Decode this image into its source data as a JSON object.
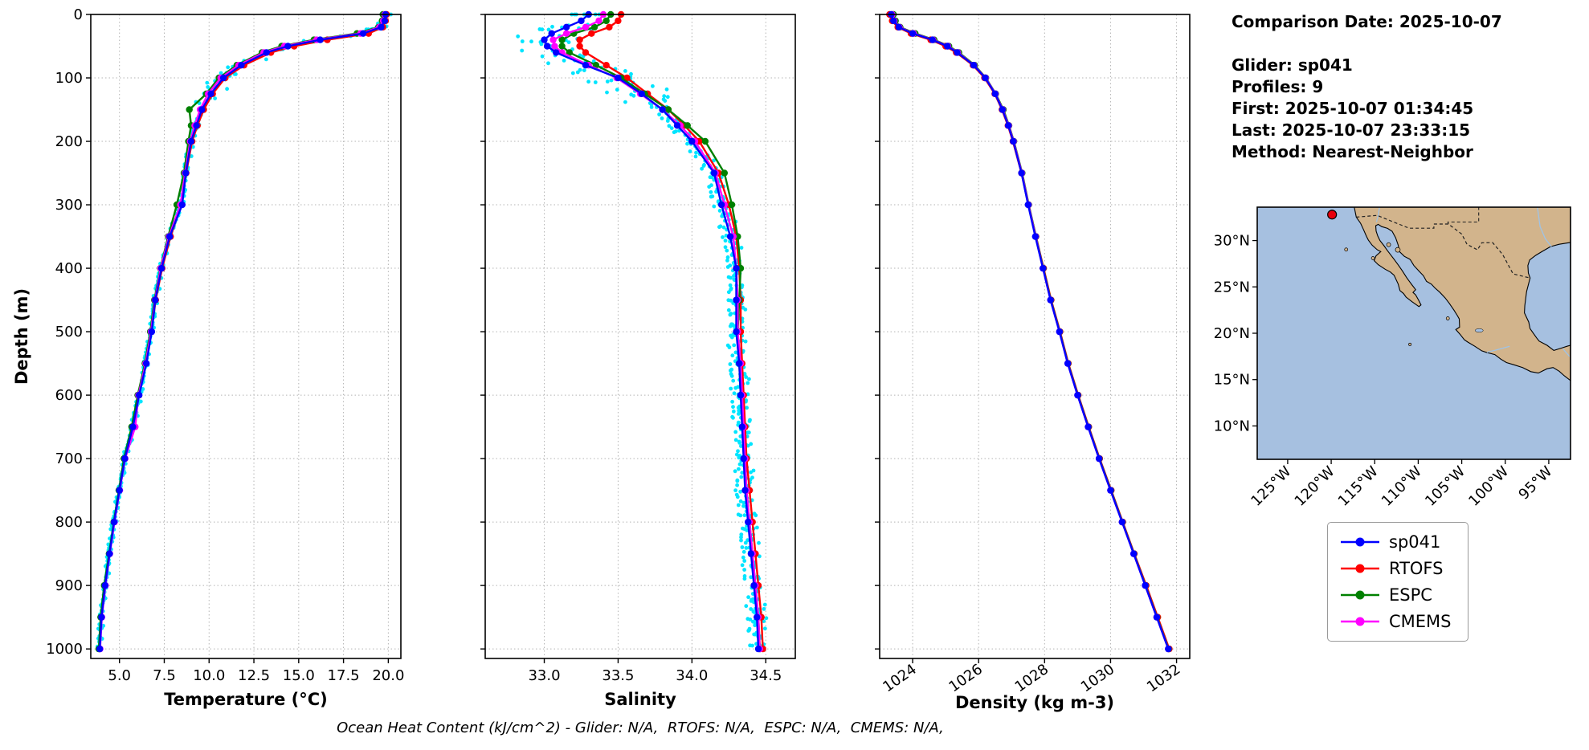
{
  "info_panel": {
    "lines": [
      "Comparison Date: 2025-10-07",
      "",
      "Glider: sp041",
      "Profiles: 9",
      "First: 2025-10-07 01:34:45",
      "Last: 2025-10-07 23:33:15",
      "Method: Nearest-Neighbor"
    ]
  },
  "caption": "Ocean Heat Content (kJ/cm^2) - Glider: N/A,  RTOFS: N/A,  ESPC: N/A,  CMEMS: N/A,",
  "legend": {
    "entries": [
      {
        "label": "sp041",
        "color": "#0000ff"
      },
      {
        "label": "RTOFS",
        "color": "#ff0000"
      },
      {
        "label": "ESPC",
        "color": "#008000"
      },
      {
        "label": "CMEMS",
        "color": "#ff00ff"
      }
    ]
  },
  "colors": {
    "glider_line": "#0000ff",
    "rtofs": "#ff0000",
    "espc": "#008000",
    "cmems": "#ff00ff",
    "glider_scatter": "#00e5ff",
    "grid": "#b4b4b4",
    "land": "#d2b48c",
    "ocean": "#a6c0e0",
    "marker_red": "#e8000b"
  },
  "chart_data": [
    {
      "type": "line",
      "xlabel": "Temperature (°C)",
      "ylabel": "Depth (m)",
      "xlim": [
        3.4,
        20.7
      ],
      "ylim": [
        0,
        1015
      ],
      "xticks": [
        5.0,
        7.5,
        10.0,
        12.5,
        15.0,
        17.5,
        20.0
      ],
      "xtick_labels": [
        "5.0",
        "7.5",
        "10.0",
        "12.5",
        "15.0",
        "17.5",
        "20.0"
      ],
      "yticks": [
        0,
        100,
        200,
        300,
        400,
        500,
        600,
        700,
        800,
        900,
        1000
      ],
      "xtick_rotation": 0,
      "show_ytick_labels": true,
      "grid": true,
      "depths": [
        0,
        10,
        20,
        30,
        40,
        50,
        60,
        80,
        100,
        125,
        150,
        175,
        200,
        250,
        300,
        350,
        400,
        450,
        500,
        550,
        600,
        650,
        700,
        750,
        800,
        850,
        900,
        950,
        1000
      ],
      "series": [
        {
          "name": "RTOFS",
          "color": "#ff0000",
          "values": [
            19.9,
            19.85,
            19.7,
            18.9,
            16.6,
            14.75,
            13.45,
            11.95,
            10.9,
            10.2,
            9.7,
            9.35,
            9.05,
            8.72,
            8.45,
            7.85,
            7.38,
            7.02,
            6.78,
            6.47,
            6.08,
            5.72,
            5.28,
            4.98,
            4.7,
            4.45,
            4.2,
            4.0,
            3.9
          ]
        },
        {
          "name": "ESPC",
          "color": "#008000",
          "values": [
            19.7,
            19.65,
            19.45,
            18.25,
            15.85,
            14.05,
            12.95,
            11.55,
            10.55,
            9.85,
            8.9,
            9.0,
            8.85,
            8.6,
            8.2,
            7.72,
            7.28,
            6.95,
            6.72,
            6.42,
            6.02,
            5.68,
            5.25,
            4.97,
            4.68,
            4.42,
            4.15,
            3.95,
            3.85
          ]
        },
        {
          "name": "CMEMS",
          "color": "#ff00ff",
          "values": [
            19.8,
            19.72,
            19.5,
            18.45,
            16.0,
            14.2,
            13.05,
            11.65,
            10.65,
            9.95,
            9.5,
            9.2,
            8.95,
            8.66,
            8.4,
            7.76,
            7.3,
            6.98,
            6.76,
            6.46,
            6.06,
            5.88,
            5.32,
            5.02,
            4.72,
            4.46,
            4.22,
            4.02,
            3.92
          ]
        },
        {
          "name": "sp041",
          "color": "#0000ff",
          "values": [
            19.85,
            19.8,
            19.6,
            18.6,
            16.2,
            14.4,
            13.2,
            11.8,
            10.8,
            10.1,
            9.6,
            9.3,
            9.0,
            8.7,
            8.5,
            7.8,
            7.35,
            7.0,
            6.8,
            6.5,
            6.1,
            5.75,
            5.3,
            5.0,
            4.7,
            4.45,
            4.2,
            4.0,
            3.9
          ]
        }
      ],
      "scatter": {
        "name": "glider raw points",
        "color": "#00e5ff",
        "amp_shallow": 0.55,
        "amp_deep": 0.12
      }
    },
    {
      "type": "line",
      "xlabel": "Salinity",
      "ylabel": "",
      "xlim": [
        32.6,
        34.7
      ],
      "ylim": [
        0,
        1015
      ],
      "xticks": [
        33.0,
        33.5,
        34.0,
        34.5
      ],
      "xtick_labels": [
        "33.0",
        "33.5",
        "34.0",
        "34.5"
      ],
      "yticks": [
        0,
        100,
        200,
        300,
        400,
        500,
        600,
        700,
        800,
        900,
        1000
      ],
      "xtick_rotation": 0,
      "show_ytick_labels": false,
      "grid": true,
      "depths": [
        0,
        10,
        20,
        30,
        40,
        50,
        60,
        80,
        100,
        125,
        150,
        175,
        200,
        250,
        300,
        350,
        400,
        450,
        500,
        550,
        600,
        650,
        700,
        750,
        800,
        850,
        900,
        950,
        1000
      ],
      "series": [
        {
          "name": "RTOFS",
          "color": "#ff0000",
          "values": [
            33.52,
            33.5,
            33.44,
            33.32,
            33.24,
            33.24,
            33.28,
            33.42,
            33.56,
            33.7,
            33.84,
            33.95,
            34.05,
            34.18,
            34.25,
            34.3,
            34.32,
            34.33,
            34.33,
            34.34,
            34.35,
            34.36,
            34.37,
            34.39,
            34.41,
            34.43,
            34.45,
            34.47,
            34.48
          ]
        },
        {
          "name": "ESPC",
          "color": "#008000",
          "values": [
            33.45,
            33.42,
            33.34,
            33.2,
            33.12,
            33.12,
            33.17,
            33.35,
            33.52,
            33.68,
            33.84,
            33.97,
            34.09,
            34.22,
            34.27,
            34.31,
            34.33,
            34.32,
            34.31,
            34.32,
            34.33,
            34.35,
            34.36,
            34.37,
            34.39,
            34.41,
            34.43,
            34.45,
            34.46
          ]
        },
        {
          "name": "CMEMS",
          "color": "#ff00ff",
          "values": [
            33.4,
            33.37,
            33.28,
            33.15,
            33.06,
            33.07,
            33.12,
            33.3,
            33.49,
            33.65,
            33.8,
            33.92,
            34.02,
            34.16,
            34.22,
            34.28,
            34.3,
            34.31,
            34.31,
            34.33,
            34.34,
            34.35,
            34.36,
            34.37,
            34.39,
            34.41,
            34.43,
            34.45,
            34.46
          ]
        },
        {
          "name": "sp041",
          "color": "#0000ff",
          "values": [
            33.3,
            33.25,
            33.15,
            33.05,
            33.0,
            33.02,
            33.08,
            33.28,
            33.5,
            33.66,
            33.8,
            33.9,
            34.0,
            34.15,
            34.2,
            34.26,
            34.3,
            34.3,
            34.3,
            34.32,
            34.33,
            34.34,
            34.35,
            34.36,
            34.38,
            34.4,
            34.42,
            34.44,
            34.45
          ]
        }
      ],
      "scatter": {
        "name": "glider raw points",
        "color": "#00e5ff",
        "amp_shallow": 0.17,
        "amp_deep": 0.045
      }
    },
    {
      "type": "line",
      "xlabel": "Density (kg m-3)",
      "ylabel": "",
      "xlim": [
        1023.0,
        1032.4
      ],
      "ylim": [
        0,
        1015
      ],
      "xticks": [
        1024,
        1026,
        1028,
        1030,
        1032
      ],
      "xtick_labels": [
        "1024",
        "1026",
        "1028",
        "1030",
        "1032"
      ],
      "yticks": [
        0,
        100,
        200,
        300,
        400,
        500,
        600,
        700,
        800,
        900,
        1000
      ],
      "xtick_rotation": -35,
      "show_ytick_labels": false,
      "grid": true,
      "depths": [
        0,
        10,
        20,
        30,
        40,
        50,
        60,
        80,
        100,
        125,
        150,
        175,
        200,
        250,
        300,
        350,
        400,
        450,
        500,
        550,
        600,
        650,
        700,
        750,
        800,
        850,
        900,
        950,
        1000
      ],
      "series": [
        {
          "name": "RTOFS",
          "color": "#ff0000",
          "values": [
            1023.3,
            1023.38,
            1023.55,
            1023.95,
            1024.55,
            1025.0,
            1025.32,
            1025.83,
            1026.18,
            1026.49,
            1026.71,
            1026.89,
            1027.04,
            1027.3,
            1027.51,
            1027.74,
            1027.97,
            1028.2,
            1028.47,
            1028.72,
            1029.02,
            1029.34,
            1029.67,
            1030.02,
            1030.37,
            1030.72,
            1031.08,
            1031.43,
            1031.78
          ]
        },
        {
          "name": "ESPC",
          "color": "#008000",
          "values": [
            1023.42,
            1023.48,
            1023.62,
            1024.08,
            1024.65,
            1025.1,
            1025.4,
            1025.88,
            1026.22,
            1026.52,
            1026.75,
            1026.92,
            1027.07,
            1027.32,
            1027.52,
            1027.74,
            1027.96,
            1028.19,
            1028.46,
            1028.71,
            1029.01,
            1029.33,
            1029.66,
            1030.01,
            1030.36,
            1030.71,
            1031.06,
            1031.41,
            1031.76
          ]
        },
        {
          "name": "CMEMS",
          "color": "#ff00ff",
          "values": [
            1023.38,
            1023.44,
            1023.6,
            1024.03,
            1024.62,
            1025.07,
            1025.37,
            1025.86,
            1026.21,
            1026.51,
            1026.73,
            1026.91,
            1027.06,
            1027.31,
            1027.51,
            1027.73,
            1027.95,
            1028.18,
            1028.45,
            1028.7,
            1029.0,
            1029.32,
            1029.65,
            1030.0,
            1030.35,
            1030.7,
            1031.05,
            1031.4,
            1031.75
          ]
        },
        {
          "name": "sp041",
          "color": "#0000ff",
          "values": [
            1023.35,
            1023.42,
            1023.58,
            1024.0,
            1024.6,
            1025.05,
            1025.35,
            1025.85,
            1026.2,
            1026.5,
            1026.72,
            1026.9,
            1027.05,
            1027.3,
            1027.5,
            1027.72,
            1027.95,
            1028.18,
            1028.45,
            1028.7,
            1029.0,
            1029.32,
            1029.65,
            1030.0,
            1030.35,
            1030.7,
            1031.05,
            1031.4,
            1031.75
          ]
        }
      ],
      "scatter": null
    }
  ],
  "map": {
    "extent": {
      "lon_min": -128.5,
      "lon_max": -92.5,
      "lat_min": 6.4,
      "lat_max": 33.6
    },
    "xticks": [
      -125,
      -120,
      -115,
      -110,
      -105,
      -100,
      -95
    ],
    "xtick_labels": [
      "125°W",
      "120°W",
      "115°W",
      "110°W",
      "105°W",
      "100°W",
      "95°W"
    ],
    "yticks": [
      30,
      25,
      20,
      15,
      10
    ],
    "ytick_labels": [
      "30°N",
      "25°N",
      "20°N",
      "15°N",
      "10°N"
    ],
    "marker": {
      "lon": -119.9,
      "lat": 32.8,
      "color": "#e8000b"
    },
    "land_color": "#d2b48c",
    "ocean_color": "#a6c0e0",
    "lake_color": "#a6c0e0"
  }
}
